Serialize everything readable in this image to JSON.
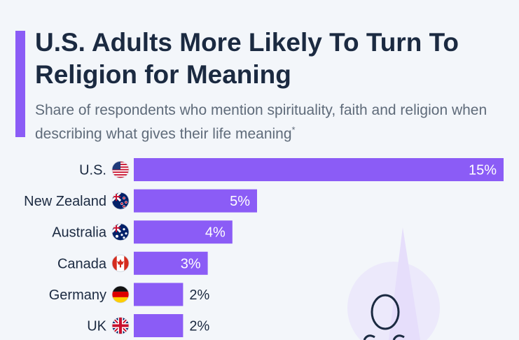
{
  "header": {
    "title": "U.S. Adults More Likely To Turn To Religion for Meaning",
    "subtitle": "Share of respondents who mention spirituality, faith and religion when describing what gives their life meaning",
    "subtitle_mark": "*"
  },
  "colors": {
    "bar": "#8b5cf6",
    "accent": "#8b5cf6",
    "text": "#1b2a41",
    "decor": "#d9cdfa"
  },
  "chart_data": {
    "type": "bar",
    "orientation": "horizontal",
    "categories": [
      "U.S.",
      "New Zealand",
      "Australia",
      "Canada",
      "Germany",
      "UK"
    ],
    "flags": [
      "flag-us-icon",
      "flag-nz-icon",
      "flag-au-icon",
      "flag-ca-icon",
      "flag-de-icon",
      "flag-uk-icon"
    ],
    "values": [
      15,
      5,
      4,
      3,
      2,
      2
    ],
    "labels": [
      "15%",
      "5%",
      "4%",
      "3%",
      "2%",
      "2%"
    ],
    "xlim": [
      0,
      15
    ],
    "grid": false,
    "legend": "none"
  }
}
